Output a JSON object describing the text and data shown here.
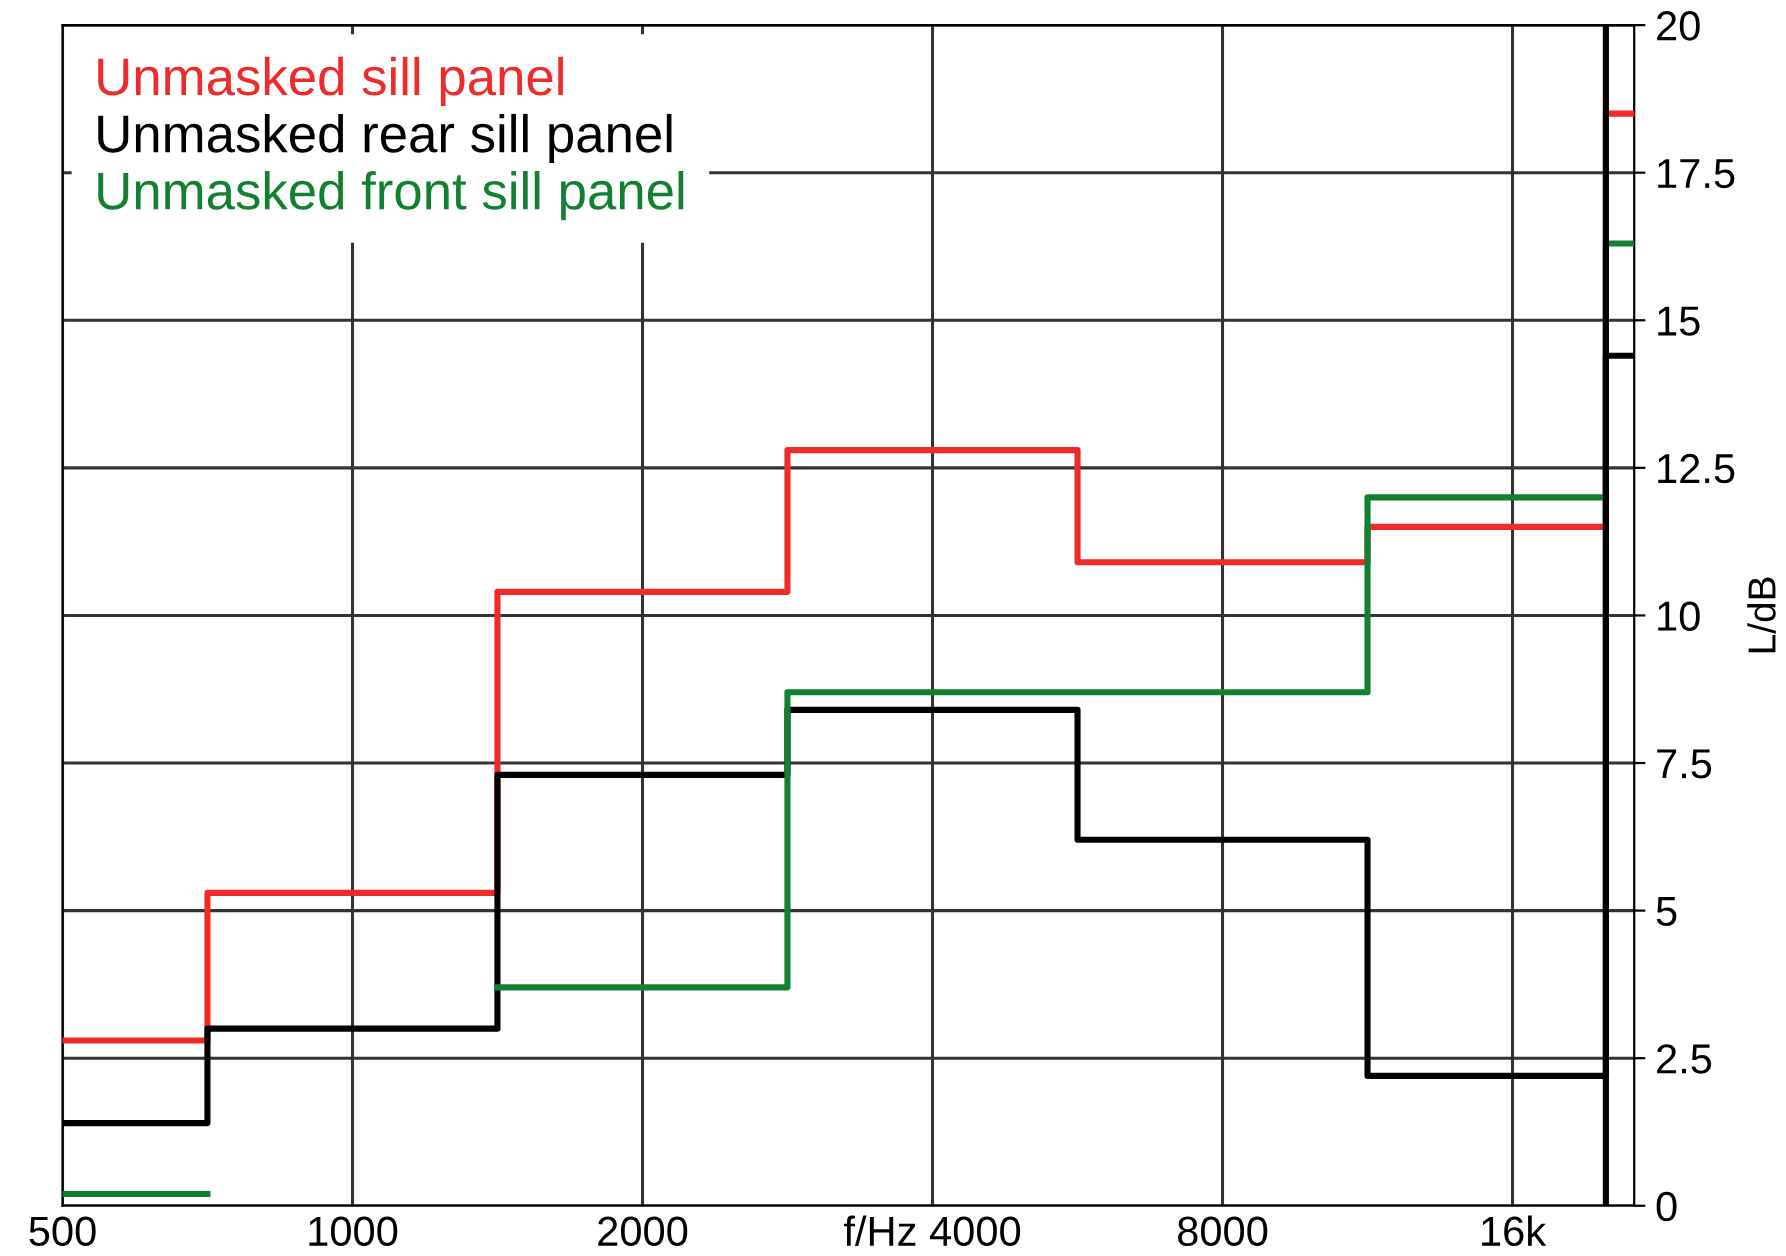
{
  "chart_data": {
    "type": "step",
    "ylabel": "L/dB",
    "x": [
      500,
      707,
      1414,
      2828,
      5657,
      11314,
      20000,
      21400
    ],
    "series": [
      {
        "name": "Unmasked sill panel",
        "color": "#ee2a2a",
        "values": [
          2.8,
          5.3,
          10.4,
          12.8,
          10.9,
          11.5,
          18.5,
          18.5
        ]
      },
      {
        "name": "Unmasked rear sill panel",
        "color": "#000000",
        "values": [
          1.4,
          3.0,
          7.3,
          8.4,
          6.2,
          2.2,
          14.4,
          14.4
        ]
      },
      {
        "name": "Unmasked front sill panel",
        "color": "#118030",
        "values": [
          0.2,
          null,
          3.7,
          8.7,
          8.7,
          12.0,
          16.3,
          16.3
        ]
      }
    ],
    "log": "x",
    "xlim": [
      500,
      21400
    ],
    "xticks": [
      500,
      1000,
      2000,
      {
        "value": 4000,
        "label": "f/Hz 4000"
      },
      8000,
      {
        "value": 16000,
        "label": "16k"
      }
    ],
    "ylim": [
      0,
      20
    ],
    "yticks": [
      0,
      2.5,
      5,
      7.5,
      10,
      12.5,
      15,
      17.5,
      20
    ],
    "ref_lines": [
      {
        "axis": "x",
        "value": 20000,
        "label": null,
        "color": "#000000"
      }
    ],
    "grid": true,
    "legend": "top left"
  }
}
